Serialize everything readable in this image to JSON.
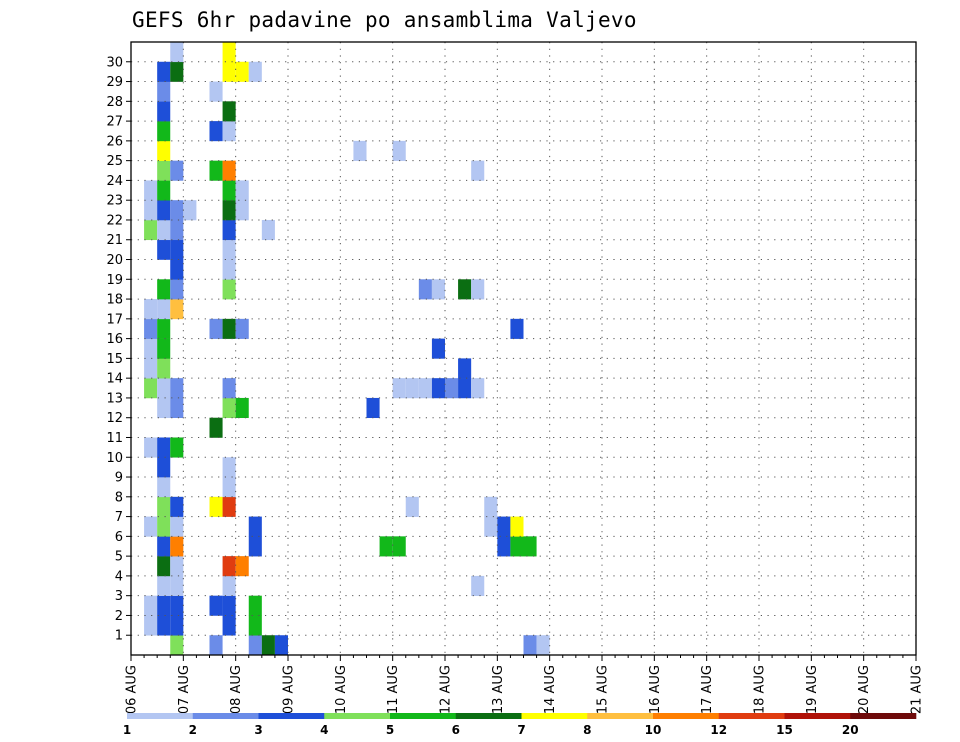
{
  "title": "GEFS 6hr padavine po ansamblima Valjevo",
  "chart_data": {
    "type": "heatmap",
    "title": "GEFS 6hr padavine po ansamblima Valjevo",
    "x_labels": [
      "06 AUG",
      "07 AUG",
      "08 AUG",
      "09 AUG",
      "10 AUG",
      "11 AUG",
      "12 AUG",
      "13 AUG",
      "14 AUG",
      "15 AUG",
      "16 AUG",
      "17 AUG",
      "18 AUG",
      "19 AUG",
      "20 AUG",
      "21 AUG"
    ],
    "x_range_days": [
      0,
      15
    ],
    "y_labels": [
      "1",
      "2",
      "3",
      "4",
      "5",
      "6",
      "7",
      "8",
      "9",
      "10",
      "11",
      "12",
      "13",
      "14",
      "15",
      "16",
      "17",
      "18",
      "19",
      "20",
      "21",
      "22",
      "23",
      "24",
      "25",
      "26",
      "27",
      "28",
      "29",
      "30"
    ],
    "y_range": [
      0,
      30
    ],
    "grid": true,
    "colorbar": {
      "labels": [
        "1",
        "2",
        "3",
        "4",
        "5",
        "6",
        "7",
        "8",
        "10",
        "12",
        "15",
        "20"
      ],
      "colors": [
        "#b3c6f2",
        "#6b8ce8",
        "#1e4fd8",
        "#7fe05a",
        "#12b81a",
        "#0b6e12",
        "#ffff00",
        "#ffbf3f",
        "#ff7f00",
        "#e03c10",
        "#b01208",
        "#6e0a0a"
      ]
    },
    "cells": [
      {
        "member": 0,
        "step": 3,
        "class": 4
      },
      {
        "member": 0,
        "step": 6,
        "class": 2
      },
      {
        "member": 0,
        "step": 9,
        "class": 2
      },
      {
        "member": 0,
        "step": 10,
        "class": 6
      },
      {
        "member": 0,
        "step": 11,
        "class": 3
      },
      {
        "member": 0,
        "step": 30,
        "class": 2
      },
      {
        "member": 0,
        "step": 31,
        "class": 1
      },
      {
        "member": 1,
        "step": 1,
        "class": 1
      },
      {
        "member": 1,
        "step": 2,
        "class": 3
      },
      {
        "member": 1,
        "step": 3,
        "class": 3
      },
      {
        "member": 1,
        "step": 7,
        "class": 3
      },
      {
        "member": 1,
        "step": 9,
        "class": 5
      },
      {
        "member": 2,
        "step": 1,
        "class": 1
      },
      {
        "member": 2,
        "step": 2,
        "class": 3
      },
      {
        "member": 2,
        "step": 3,
        "class": 3
      },
      {
        "member": 2,
        "step": 6,
        "class": 3
      },
      {
        "member": 2,
        "step": 7,
        "class": 3
      },
      {
        "member": 2,
        "step": 9,
        "class": 5
      },
      {
        "member": 3,
        "step": 2,
        "class": 1
      },
      {
        "member": 3,
        "step": 3,
        "class": 1
      },
      {
        "member": 3,
        "step": 7,
        "class": 1
      },
      {
        "member": 3,
        "step": 26,
        "class": 1
      },
      {
        "member": 4,
        "step": 2,
        "class": 6
      },
      {
        "member": 4,
        "step": 3,
        "class": 1
      },
      {
        "member": 4,
        "step": 7,
        "class": 10
      },
      {
        "member": 4,
        "step": 8,
        "class": 9
      },
      {
        "member": 5,
        "step": 2,
        "class": 3
      },
      {
        "member": 5,
        "step": 3,
        "class": 9
      },
      {
        "member": 5,
        "step": 9,
        "class": 3
      },
      {
        "member": 5,
        "step": 19,
        "class": 5
      },
      {
        "member": 5,
        "step": 20,
        "class": 5
      },
      {
        "member": 5,
        "step": 28,
        "class": 3
      },
      {
        "member": 5,
        "step": 29,
        "class": 5
      },
      {
        "member": 5,
        "step": 30,
        "class": 5
      },
      {
        "member": 6,
        "step": 1,
        "class": 1
      },
      {
        "member": 6,
        "step": 2,
        "class": 4
      },
      {
        "member": 6,
        "step": 3,
        "class": 1
      },
      {
        "member": 6,
        "step": 9,
        "class": 3
      },
      {
        "member": 6,
        "step": 27,
        "class": 1
      },
      {
        "member": 6,
        "step": 28,
        "class": 3
      },
      {
        "member": 6,
        "step": 29,
        "class": 7
      },
      {
        "member": 7,
        "step": 2,
        "class": 4
      },
      {
        "member": 7,
        "step": 3,
        "class": 3
      },
      {
        "member": 7,
        "step": 6,
        "class": 7
      },
      {
        "member": 7,
        "step": 7,
        "class": 10
      },
      {
        "member": 7,
        "step": 21,
        "class": 1
      },
      {
        "member": 7,
        "step": 27,
        "class": 1
      },
      {
        "member": 8,
        "step": 2,
        "class": 1
      },
      {
        "member": 8,
        "step": 7,
        "class": 1
      },
      {
        "member": 9,
        "step": 2,
        "class": 3
      },
      {
        "member": 9,
        "step": 7,
        "class": 1
      },
      {
        "member": 10,
        "step": 1,
        "class": 1
      },
      {
        "member": 10,
        "step": 2,
        "class": 3
      },
      {
        "member": 10,
        "step": 3,
        "class": 5
      },
      {
        "member": 11,
        "step": 6,
        "class": 6
      },
      {
        "member": 12,
        "step": 2,
        "class": 1
      },
      {
        "member": 12,
        "step": 3,
        "class": 2
      },
      {
        "member": 12,
        "step": 7,
        "class": 4
      },
      {
        "member": 12,
        "step": 8,
        "class": 5
      },
      {
        "member": 12,
        "step": 18,
        "class": 3
      },
      {
        "member": 13,
        "step": 1,
        "class": 4
      },
      {
        "member": 13,
        "step": 2,
        "class": 1
      },
      {
        "member": 13,
        "step": 3,
        "class": 2
      },
      {
        "member": 13,
        "step": 7,
        "class": 2
      },
      {
        "member": 13,
        "step": 20,
        "class": 1
      },
      {
        "member": 13,
        "step": 21,
        "class": 1
      },
      {
        "member": 13,
        "step": 22,
        "class": 1
      },
      {
        "member": 13,
        "step": 23,
        "class": 3
      },
      {
        "member": 13,
        "step": 24,
        "class": 2
      },
      {
        "member": 13,
        "step": 25,
        "class": 3
      },
      {
        "member": 13,
        "step": 26,
        "class": 1
      },
      {
        "member": 14,
        "step": 1,
        "class": 1
      },
      {
        "member": 14,
        "step": 2,
        "class": 4
      },
      {
        "member": 14,
        "step": 25,
        "class": 3
      },
      {
        "member": 15,
        "step": 1,
        "class": 1
      },
      {
        "member": 15,
        "step": 2,
        "class": 5
      },
      {
        "member": 15,
        "step": 23,
        "class": 3
      },
      {
        "member": 16,
        "step": 1,
        "class": 2
      },
      {
        "member": 16,
        "step": 2,
        "class": 5
      },
      {
        "member": 16,
        "step": 6,
        "class": 2
      },
      {
        "member": 16,
        "step": 7,
        "class": 6
      },
      {
        "member": 16,
        "step": 8,
        "class": 2
      },
      {
        "member": 16,
        "step": 29,
        "class": 3
      },
      {
        "member": 17,
        "step": 1,
        "class": 1
      },
      {
        "member": 17,
        "step": 2,
        "class": 1
      },
      {
        "member": 17,
        "step": 3,
        "class": 8
      },
      {
        "member": 18,
        "step": 2,
        "class": 5
      },
      {
        "member": 18,
        "step": 3,
        "class": 2
      },
      {
        "member": 18,
        "step": 7,
        "class": 4
      },
      {
        "member": 18,
        "step": 22,
        "class": 2
      },
      {
        "member": 18,
        "step": 23,
        "class": 1
      },
      {
        "member": 18,
        "step": 25,
        "class": 6
      },
      {
        "member": 18,
        "step": 26,
        "class": 1
      },
      {
        "member": 19,
        "step": 3,
        "class": 3
      },
      {
        "member": 19,
        "step": 7,
        "class": 1
      },
      {
        "member": 20,
        "step": 2,
        "class": 3
      },
      {
        "member": 20,
        "step": 3,
        "class": 3
      },
      {
        "member": 20,
        "step": 7,
        "class": 1
      },
      {
        "member": 21,
        "step": 1,
        "class": 4
      },
      {
        "member": 21,
        "step": 2,
        "class": 1
      },
      {
        "member": 21,
        "step": 3,
        "class": 2
      },
      {
        "member": 21,
        "step": 7,
        "class": 3
      },
      {
        "member": 21,
        "step": 10,
        "class": 1
      },
      {
        "member": 22,
        "step": 1,
        "class": 1
      },
      {
        "member": 22,
        "step": 2,
        "class": 3
      },
      {
        "member": 22,
        "step": 3,
        "class": 2
      },
      {
        "member": 22,
        "step": 4,
        "class": 1
      },
      {
        "member": 22,
        "step": 7,
        "class": 6
      },
      {
        "member": 22,
        "step": 8,
        "class": 1
      },
      {
        "member": 23,
        "step": 1,
        "class": 1
      },
      {
        "member": 23,
        "step": 2,
        "class": 5
      },
      {
        "member": 23,
        "step": 7,
        "class": 5
      },
      {
        "member": 23,
        "step": 8,
        "class": 1
      },
      {
        "member": 24,
        "step": 2,
        "class": 4
      },
      {
        "member": 24,
        "step": 3,
        "class": 2
      },
      {
        "member": 24,
        "step": 6,
        "class": 5
      },
      {
        "member": 24,
        "step": 7,
        "class": 9
      },
      {
        "member": 24,
        "step": 26,
        "class": 1
      },
      {
        "member": 25,
        "step": 2,
        "class": 7
      },
      {
        "member": 25,
        "step": 17,
        "class": 1
      },
      {
        "member": 25,
        "step": 20,
        "class": 1
      },
      {
        "member": 26,
        "step": 2,
        "class": 5
      },
      {
        "member": 26,
        "step": 6,
        "class": 3
      },
      {
        "member": 26,
        "step": 7,
        "class": 1
      },
      {
        "member": 27,
        "step": 2,
        "class": 3
      },
      {
        "member": 27,
        "step": 7,
        "class": 6
      },
      {
        "member": 28,
        "step": 2,
        "class": 2
      },
      {
        "member": 28,
        "step": 6,
        "class": 1
      },
      {
        "member": 29,
        "step": 2,
        "class": 3
      },
      {
        "member": 29,
        "step": 3,
        "class": 6
      },
      {
        "member": 29,
        "step": 7,
        "class": 7
      },
      {
        "member": 29,
        "step": 8,
        "class": 7
      },
      {
        "member": 29,
        "step": 9,
        "class": 1
      },
      {
        "member": 30,
        "step": 3,
        "class": 1
      },
      {
        "member": 30,
        "step": 7,
        "class": 7
      }
    ]
  }
}
